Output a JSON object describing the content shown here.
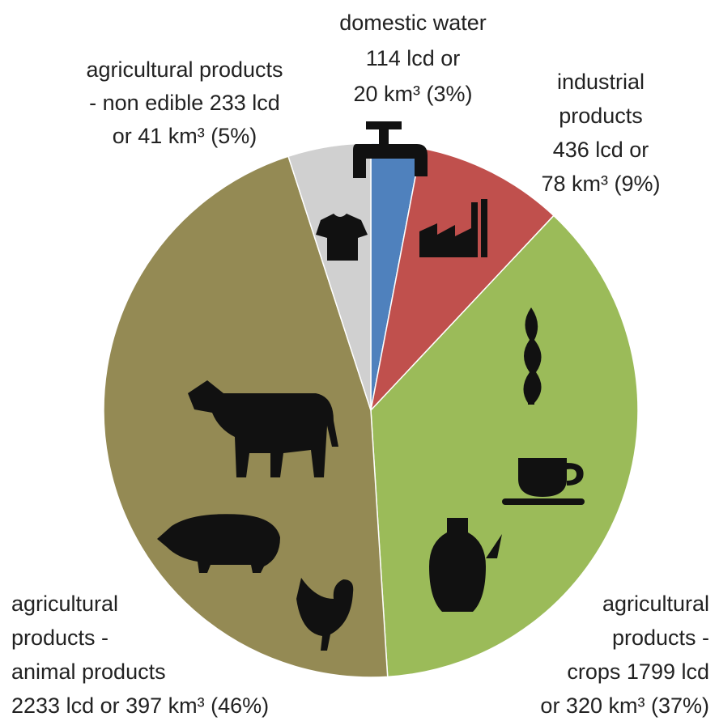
{
  "chart_data": {
    "type": "pie",
    "categories": [
      "domestic water",
      "industrial products",
      "agricultural products - crops",
      "agricultural products - animal products",
      "agricultural products - non edible"
    ],
    "values": [
      3,
      9,
      37,
      46,
      5
    ],
    "colors": [
      "#4f81bd",
      "#c0504d",
      "#9bbb59",
      "#948a54",
      "#d0d0d0"
    ],
    "labels": [
      [
        "domestic water",
        "114 lcd or",
        "20 km³ (3%)"
      ],
      [
        "industrial",
        "products",
        "436 lcd or",
        "78 km³ (9%)"
      ],
      [
        "agricultural",
        "products -",
        "crops 1799 lcd",
        "or 320 km³ (37%)"
      ],
      [
        "agricultural",
        "products -",
        "animal products",
        "2233 lcd or 397 km³ (46%)"
      ],
      [
        "agricultural products",
        "- non edible 233 lcd",
        "or 41 km³ (5%)"
      ]
    ]
  }
}
